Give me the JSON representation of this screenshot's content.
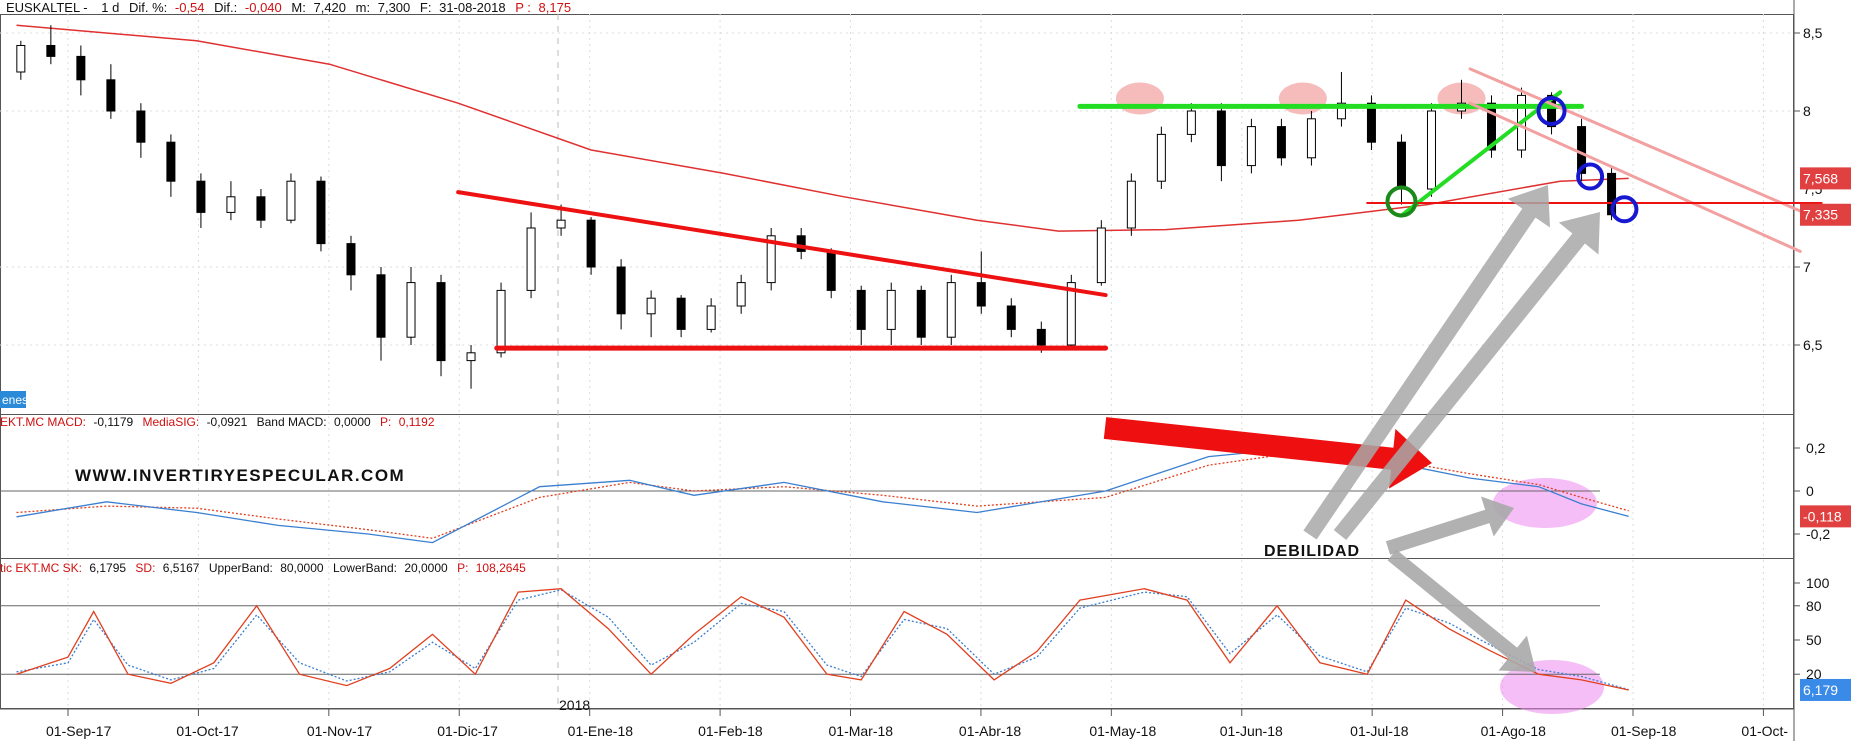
{
  "header": {
    "symbol": "EUSKALTEL -",
    "period": "1 d",
    "dif_pct_label": "Dif. %:",
    "dif_pct_value": "-0,54",
    "dif_label": "Dif.:",
    "dif_value": "-0,040",
    "max_label": "M:",
    "max_value": "7,420",
    "min_label": "m:",
    "min_value": "7,300",
    "date_label": "F:",
    "date_value": "31-08-2018",
    "price_label": "P :",
    "price_value": "8,175"
  },
  "side_tag": "enes",
  "watermark": "WWW.INVERTIRYESPECULAR.COM",
  "annotation_text": "DEBILIDAD",
  "year_marker": "2018",
  "colors": {
    "up": "#ffffff",
    "down": "#000000",
    "ma": "#e03030",
    "resistance": "#22dd22",
    "trend": "#ee1111",
    "channel": "#f2a0a0",
    "blue_line": "#3a7fd0",
    "red_line": "#e04020",
    "arrow_gray": "#a8a8a8",
    "highlight_pink": "#f4b0b0",
    "highlight_magenta": "#ee88ee"
  },
  "macd_header": {
    "name": "EKT.MC MACD:",
    "macd": "-0,1179",
    "sig_label": "MediaSIG:",
    "sig": "-0,0921",
    "band_label": "Band MACD:",
    "band": "0,0000",
    "p_label": "P:",
    "p": "0,1192"
  },
  "stoch_header": {
    "name": "tic EKT.MC SK:",
    "sk": "6,1795",
    "sd_label": "SD:",
    "sd": "6,5167",
    "ub_label": "UpperBand:",
    "ub": "80,0000",
    "lb_label": "LowerBand:",
    "lb": "20,0000",
    "p_label": "P:",
    "p": "108,2645"
  },
  "price_axis": {
    "ticks": [
      "8,5",
      "8",
      "7",
      "6,5"
    ],
    "tick_values": [
      8.5,
      8,
      7,
      6.5
    ],
    "partial_tick": "7,5",
    "tag_high": "7,568",
    "tag_high_value": 7.568,
    "tag_low": "7,335",
    "tag_low_value": 7.335
  },
  "macd_axis": {
    "ticks": [
      "0,2",
      "0",
      "-0,2"
    ],
    "tick_values": [
      0.2,
      0,
      -0.2
    ],
    "tag": "-0,118",
    "tag_value": -0.118
  },
  "stoch_axis": {
    "ticks": [
      "100",
      "80",
      "50",
      "20"
    ],
    "tick_values": [
      100,
      80,
      50,
      20
    ],
    "tag": "6,179",
    "tag_value": 6.179
  },
  "date_axis": {
    "labels": [
      "01-Sep-17",
      "01-Oct-17",
      "01-Nov-17",
      "01-Dic-17",
      "01-Ene-18",
      "01-Feb-18",
      "01-Mar-18",
      "01-Abr-18",
      "01-May-18",
      "01-Jun-18",
      "01-Jul-18",
      "01-Ago-18",
      "01-Sep-18",
      "01-Oct-"
    ]
  },
  "chart_data": {
    "type": "candlestick",
    "title": "EUSKALTEL",
    "period": "1 d",
    "date_range": [
      "2017-08-20",
      "2018-08-31"
    ],
    "ylim": [
      6.1,
      8.6
    ],
    "candles": [
      {
        "date": "2017-08-21",
        "o": 8.25,
        "h": 8.45,
        "l": 8.2,
        "c": 8.42
      },
      {
        "date": "2017-08-28",
        "o": 8.42,
        "h": 8.55,
        "l": 8.3,
        "c": 8.35
      },
      {
        "date": "2017-09-04",
        "o": 8.35,
        "h": 8.42,
        "l": 8.1,
        "c": 8.2
      },
      {
        "date": "2017-09-11",
        "o": 8.2,
        "h": 8.3,
        "l": 7.95,
        "c": 8.0
      },
      {
        "date": "2017-09-18",
        "o": 8.0,
        "h": 8.05,
        "l": 7.7,
        "c": 7.8
      },
      {
        "date": "2017-09-25",
        "o": 7.8,
        "h": 7.85,
        "l": 7.45,
        "c": 7.55
      },
      {
        "date": "2017-10-02",
        "o": 7.55,
        "h": 7.6,
        "l": 7.25,
        "c": 7.35
      },
      {
        "date": "2017-10-09",
        "o": 7.35,
        "h": 7.55,
        "l": 7.3,
        "c": 7.45
      },
      {
        "date": "2017-10-16",
        "o": 7.45,
        "h": 7.5,
        "l": 7.25,
        "c": 7.3
      },
      {
        "date": "2017-10-23",
        "o": 7.3,
        "h": 7.6,
        "l": 7.28,
        "c": 7.55
      },
      {
        "date": "2017-10-30",
        "o": 7.55,
        "h": 7.58,
        "l": 7.1,
        "c": 7.15
      },
      {
        "date": "2017-11-06",
        "o": 7.15,
        "h": 7.2,
        "l": 6.85,
        "c": 6.95
      },
      {
        "date": "2017-11-13",
        "o": 6.95,
        "h": 7.0,
        "l": 6.4,
        "c": 6.55
      },
      {
        "date": "2017-11-20",
        "o": 6.55,
        "h": 7.0,
        "l": 6.5,
        "c": 6.9
      },
      {
        "date": "2017-11-27",
        "o": 6.9,
        "h": 6.95,
        "l": 6.3,
        "c": 6.4
      },
      {
        "date": "2017-12-04",
        "o": 6.4,
        "h": 6.5,
        "l": 6.22,
        "c": 6.45
      },
      {
        "date": "2017-12-11",
        "o": 6.45,
        "h": 6.9,
        "l": 6.42,
        "c": 6.85
      },
      {
        "date": "2017-12-18",
        "o": 6.85,
        "h": 7.35,
        "l": 6.8,
        "c": 7.25
      },
      {
        "date": "2017-12-25",
        "o": 7.25,
        "h": 7.4,
        "l": 7.2,
        "c": 7.3
      },
      {
        "date": "2018-01-01",
        "o": 7.3,
        "h": 7.32,
        "l": 6.95,
        "c": 7.0
      },
      {
        "date": "2018-01-08",
        "o": 7.0,
        "h": 7.05,
        "l": 6.6,
        "c": 6.7
      },
      {
        "date": "2018-01-15",
        "o": 6.7,
        "h": 6.85,
        "l": 6.55,
        "c": 6.8
      },
      {
        "date": "2018-01-22",
        "o": 6.8,
        "h": 6.82,
        "l": 6.55,
        "c": 6.6
      },
      {
        "date": "2018-01-29",
        "o": 6.6,
        "h": 6.8,
        "l": 6.58,
        "c": 6.75
      },
      {
        "date": "2018-02-05",
        "o": 6.75,
        "h": 6.95,
        "l": 6.7,
        "c": 6.9
      },
      {
        "date": "2018-02-12",
        "o": 6.9,
        "h": 7.25,
        "l": 6.85,
        "c": 7.2
      },
      {
        "date": "2018-02-19",
        "o": 7.2,
        "h": 7.25,
        "l": 7.05,
        "c": 7.1
      },
      {
        "date": "2018-02-26",
        "o": 7.1,
        "h": 7.12,
        "l": 6.8,
        "c": 6.85
      },
      {
        "date": "2018-03-05",
        "o": 6.85,
        "h": 6.88,
        "l": 6.5,
        "c": 6.6
      },
      {
        "date": "2018-03-12",
        "o": 6.6,
        "h": 6.9,
        "l": 6.5,
        "c": 6.85
      },
      {
        "date": "2018-03-19",
        "o": 6.85,
        "h": 6.88,
        "l": 6.5,
        "c": 6.55
      },
      {
        "date": "2018-03-26",
        "o": 6.55,
        "h": 6.95,
        "l": 6.5,
        "c": 6.9
      },
      {
        "date": "2018-04-02",
        "o": 6.9,
        "h": 7.1,
        "l": 6.7,
        "c": 6.75
      },
      {
        "date": "2018-04-09",
        "o": 6.75,
        "h": 6.8,
        "l": 6.55,
        "c": 6.6
      },
      {
        "date": "2018-04-16",
        "o": 6.6,
        "h": 6.65,
        "l": 6.45,
        "c": 6.5
      },
      {
        "date": "2018-04-23",
        "o": 6.5,
        "h": 6.95,
        "l": 6.48,
        "c": 6.9
      },
      {
        "date": "2018-04-30",
        "o": 6.9,
        "h": 7.3,
        "l": 6.88,
        "c": 7.25
      },
      {
        "date": "2018-05-07",
        "o": 7.25,
        "h": 7.6,
        "l": 7.2,
        "c": 7.55
      },
      {
        "date": "2018-05-14",
        "o": 7.55,
        "h": 7.9,
        "l": 7.5,
        "c": 7.85
      },
      {
        "date": "2018-05-21",
        "o": 7.85,
        "h": 8.05,
        "l": 7.8,
        "c": 8.0
      },
      {
        "date": "2018-05-28",
        "o": 8.0,
        "h": 8.05,
        "l": 7.55,
        "c": 7.65
      },
      {
        "date": "2018-06-04",
        "o": 7.65,
        "h": 7.95,
        "l": 7.6,
        "c": 7.9
      },
      {
        "date": "2018-06-11",
        "o": 7.9,
        "h": 7.95,
        "l": 7.65,
        "c": 7.7
      },
      {
        "date": "2018-06-18",
        "o": 7.7,
        "h": 8.0,
        "l": 7.65,
        "c": 7.95
      },
      {
        "date": "2018-06-25",
        "o": 7.95,
        "h": 8.25,
        "l": 7.9,
        "c": 8.05
      },
      {
        "date": "2018-07-02",
        "o": 8.05,
        "h": 8.1,
        "l": 7.75,
        "c": 7.8
      },
      {
        "date": "2018-07-09",
        "o": 7.8,
        "h": 7.85,
        "l": 7.4,
        "c": 7.5
      },
      {
        "date": "2018-07-16",
        "o": 7.5,
        "h": 8.05,
        "l": 7.45,
        "c": 8.0
      },
      {
        "date": "2018-07-23",
        "o": 8.0,
        "h": 8.2,
        "l": 7.95,
        "c": 8.05
      },
      {
        "date": "2018-07-30",
        "o": 8.05,
        "h": 8.1,
        "l": 7.7,
        "c": 7.75
      },
      {
        "date": "2018-08-06",
        "o": 7.75,
        "h": 8.15,
        "l": 7.7,
        "c": 8.1
      },
      {
        "date": "2018-08-13",
        "o": 8.1,
        "h": 8.12,
        "l": 7.85,
        "c": 7.9
      },
      {
        "date": "2018-08-20",
        "o": 7.9,
        "h": 7.95,
        "l": 7.55,
        "c": 7.6
      },
      {
        "date": "2018-08-27",
        "o": 7.6,
        "h": 7.65,
        "l": 7.3,
        "c": 7.335
      }
    ],
    "moving_average": [
      {
        "date": "2017-08-20",
        "v": 8.55
      },
      {
        "date": "2017-10-01",
        "v": 8.45
      },
      {
        "date": "2017-11-01",
        "v": 8.3
      },
      {
        "date": "2017-12-01",
        "v": 8.05
      },
      {
        "date": "2018-01-01",
        "v": 7.75
      },
      {
        "date": "2018-02-01",
        "v": 7.6
      },
      {
        "date": "2018-03-01",
        "v": 7.45
      },
      {
        "date": "2018-04-01",
        "v": 7.3
      },
      {
        "date": "2018-04-20",
        "v": 7.23
      },
      {
        "date": "2018-05-15",
        "v": 7.24
      },
      {
        "date": "2018-06-15",
        "v": 7.3
      },
      {
        "date": "2018-07-15",
        "v": 7.4
      },
      {
        "date": "2018-08-15",
        "v": 7.55
      },
      {
        "date": "2018-08-31",
        "v": 7.568
      }
    ],
    "drawings": {
      "resistance": {
        "start": {
          "date": "2018-04-25",
          "v": 8.03
        },
        "end": {
          "date": "2018-08-20",
          "v": 8.03
        }
      },
      "descending_trend": {
        "start": {
          "date": "2017-12-01",
          "v": 7.48
        },
        "end": {
          "date": "2018-05-01",
          "v": 6.82
        }
      },
      "support": {
        "start": {
          "date": "2017-12-10",
          "v": 6.48
        },
        "end": {
          "date": "2018-05-01",
          "v": 6.48
        }
      },
      "rising_trend": {
        "start": {
          "date": "2018-07-09",
          "v": 7.33
        },
        "end": {
          "date": "2018-08-15",
          "v": 8.12
        }
      },
      "channel_upper": {
        "start": {
          "date": "2018-07-25",
          "v": 8.27
        },
        "end": {
          "date": "2018-10-15",
          "v": 7.3
        }
      },
      "channel_lower": {
        "start": {
          "date": "2018-07-25",
          "v": 8.05
        },
        "end": {
          "date": "2018-10-10",
          "v": 7.1
        }
      },
      "horizontal_low": {
        "start": {
          "date": "2018-07-01",
          "v": 7.41
        },
        "end": {
          "date": "2018-10-15",
          "v": 7.41
        }
      }
    },
    "macd": {
      "ylim": [
        -0.3,
        0.3
      ],
      "macd_line": [
        {
          "date": "2017-08-20",
          "v": -0.12
        },
        {
          "date": "2017-09-10",
          "v": -0.05
        },
        {
          "date": "2017-10-01",
          "v": -0.1
        },
        {
          "date": "2017-10-20",
          "v": -0.16
        },
        {
          "date": "2017-11-10",
          "v": -0.2
        },
        {
          "date": "2017-11-25",
          "v": -0.24
        },
        {
          "date": "2017-12-20",
          "v": 0.02
        },
        {
          "date": "2018-01-10",
          "v": 0.05
        },
        {
          "date": "2018-01-25",
          "v": -0.02
        },
        {
          "date": "2018-02-15",
          "v": 0.04
        },
        {
          "date": "2018-03-10",
          "v": -0.05
        },
        {
          "date": "2018-04-01",
          "v": -0.1
        },
        {
          "date": "2018-05-01",
          "v": 0.0
        },
        {
          "date": "2018-05-25",
          "v": 0.16
        },
        {
          "date": "2018-06-15",
          "v": 0.2
        },
        {
          "date": "2018-07-05",
          "v": 0.14
        },
        {
          "date": "2018-07-25",
          "v": 0.06
        },
        {
          "date": "2018-08-10",
          "v": 0.02
        },
        {
          "date": "2018-08-20",
          "v": -0.06
        },
        {
          "date": "2018-08-31",
          "v": -0.118
        }
      ],
      "signal_line": [
        {
          "date": "2017-08-20",
          "v": -0.1
        },
        {
          "date": "2017-09-10",
          "v": -0.07
        },
        {
          "date": "2017-10-01",
          "v": -0.08
        },
        {
          "date": "2017-10-20",
          "v": -0.13
        },
        {
          "date": "2017-11-10",
          "v": -0.18
        },
        {
          "date": "2017-11-25",
          "v": -0.22
        },
        {
          "date": "2017-12-20",
          "v": -0.03
        },
        {
          "date": "2018-01-10",
          "v": 0.04
        },
        {
          "date": "2018-01-25",
          "v": 0.0
        },
        {
          "date": "2018-02-15",
          "v": 0.02
        },
        {
          "date": "2018-03-10",
          "v": -0.02
        },
        {
          "date": "2018-04-01",
          "v": -0.07
        },
        {
          "date": "2018-05-01",
          "v": -0.03
        },
        {
          "date": "2018-05-25",
          "v": 0.12
        },
        {
          "date": "2018-06-15",
          "v": 0.18
        },
        {
          "date": "2018-07-05",
          "v": 0.15
        },
        {
          "date": "2018-07-25",
          "v": 0.08
        },
        {
          "date": "2018-08-10",
          "v": 0.03
        },
        {
          "date": "2018-08-20",
          "v": -0.03
        },
        {
          "date": "2018-08-31",
          "v": -0.0921
        }
      ]
    },
    "stochastic": {
      "ylim": [
        0,
        100
      ],
      "upper_band": 80,
      "lower_band": 20,
      "sk": [
        {
          "date": "2017-08-20",
          "v": 20
        },
        {
          "date": "2017-09-01",
          "v": 35
        },
        {
          "date": "2017-09-07",
          "v": 75
        },
        {
          "date": "2017-09-15",
          "v": 20
        },
        {
          "date": "2017-09-25",
          "v": 12
        },
        {
          "date": "2017-10-05",
          "v": 30
        },
        {
          "date": "2017-10-15",
          "v": 80
        },
        {
          "date": "2017-10-25",
          "v": 20
        },
        {
          "date": "2017-11-05",
          "v": 10
        },
        {
          "date": "2017-11-15",
          "v": 25
        },
        {
          "date": "2017-11-25",
          "v": 55
        },
        {
          "date": "2017-12-05",
          "v": 20
        },
        {
          "date": "2017-12-15",
          "v": 92
        },
        {
          "date": "2017-12-25",
          "v": 95
        },
        {
          "date": "2018-01-05",
          "v": 60
        },
        {
          "date": "2018-01-15",
          "v": 20
        },
        {
          "date": "2018-01-25",
          "v": 55
        },
        {
          "date": "2018-02-05",
          "v": 88
        },
        {
          "date": "2018-02-15",
          "v": 70
        },
        {
          "date": "2018-02-25",
          "v": 20
        },
        {
          "date": "2018-03-05",
          "v": 15
        },
        {
          "date": "2018-03-15",
          "v": 75
        },
        {
          "date": "2018-03-25",
          "v": 55
        },
        {
          "date": "2018-04-05",
          "v": 15
        },
        {
          "date": "2018-04-15",
          "v": 40
        },
        {
          "date": "2018-04-25",
          "v": 85
        },
        {
          "date": "2018-05-10",
          "v": 95
        },
        {
          "date": "2018-05-20",
          "v": 85
        },
        {
          "date": "2018-05-30",
          "v": 30
        },
        {
          "date": "2018-06-10",
          "v": 80
        },
        {
          "date": "2018-06-20",
          "v": 30
        },
        {
          "date": "2018-07-01",
          "v": 20
        },
        {
          "date": "2018-07-10",
          "v": 85
        },
        {
          "date": "2018-07-20",
          "v": 60
        },
        {
          "date": "2018-07-30",
          "v": 40
        },
        {
          "date": "2018-08-10",
          "v": 20
        },
        {
          "date": "2018-08-20",
          "v": 15
        },
        {
          "date": "2018-08-31",
          "v": 6.179
        }
      ],
      "sd": [
        {
          "date": "2017-08-20",
          "v": 22
        },
        {
          "date": "2017-09-01",
          "v": 30
        },
        {
          "date": "2017-09-07",
          "v": 68
        },
        {
          "date": "2017-09-15",
          "v": 28
        },
        {
          "date": "2017-09-25",
          "v": 15
        },
        {
          "date": "2017-10-05",
          "v": 25
        },
        {
          "date": "2017-10-15",
          "v": 72
        },
        {
          "date": "2017-10-25",
          "v": 30
        },
        {
          "date": "2017-11-05",
          "v": 14
        },
        {
          "date": "2017-11-15",
          "v": 22
        },
        {
          "date": "2017-11-25",
          "v": 48
        },
        {
          "date": "2017-12-05",
          "v": 25
        },
        {
          "date": "2017-12-15",
          "v": 85
        },
        {
          "date": "2017-12-25",
          "v": 94
        },
        {
          "date": "2018-01-05",
          "v": 70
        },
        {
          "date": "2018-01-15",
          "v": 28
        },
        {
          "date": "2018-01-25",
          "v": 48
        },
        {
          "date": "2018-02-05",
          "v": 82
        },
        {
          "date": "2018-02-15",
          "v": 75
        },
        {
          "date": "2018-02-25",
          "v": 28
        },
        {
          "date": "2018-03-05",
          "v": 18
        },
        {
          "date": "2018-03-15",
          "v": 68
        },
        {
          "date": "2018-03-25",
          "v": 60
        },
        {
          "date": "2018-04-05",
          "v": 20
        },
        {
          "date": "2018-04-15",
          "v": 35
        },
        {
          "date": "2018-04-25",
          "v": 78
        },
        {
          "date": "2018-05-10",
          "v": 92
        },
        {
          "date": "2018-05-20",
          "v": 88
        },
        {
          "date": "2018-05-30",
          "v": 38
        },
        {
          "date": "2018-06-10",
          "v": 72
        },
        {
          "date": "2018-06-20",
          "v": 36
        },
        {
          "date": "2018-07-01",
          "v": 22
        },
        {
          "date": "2018-07-10",
          "v": 78
        },
        {
          "date": "2018-07-20",
          "v": 65
        },
        {
          "date": "2018-07-30",
          "v": 45
        },
        {
          "date": "2018-08-10",
          "v": 24
        },
        {
          "date": "2018-08-20",
          "v": 18
        },
        {
          "date": "2018-08-31",
          "v": 6.5167
        }
      ]
    }
  }
}
